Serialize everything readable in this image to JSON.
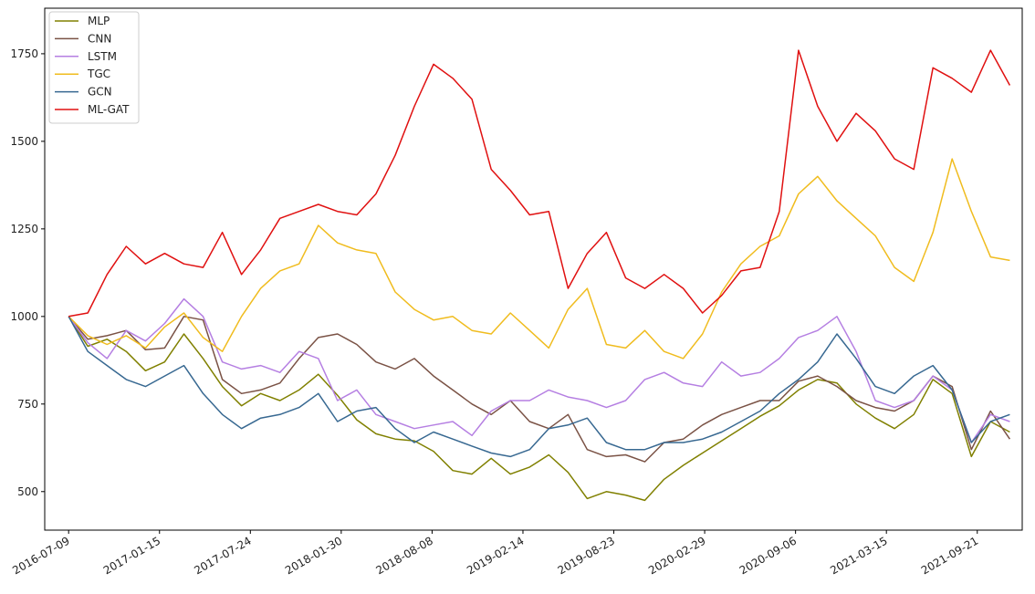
{
  "chart_data": {
    "type": "line",
    "title": "",
    "xlabel": "",
    "ylabel": "",
    "x_ticks": [
      "2016-07-09",
      "2017-01-15",
      "2017-07-24",
      "2018-01-30",
      "2018-08-08",
      "2019-02-14",
      "2019-08-23",
      "2020-02-29",
      "2020-09-06",
      "2021-03-15",
      "2021-09-21"
    ],
    "y_ticks": [
      500,
      750,
      1000,
      1250,
      1500,
      1750
    ],
    "ylim": [
      390,
      1880
    ],
    "xlim": [
      "2016-05-20",
      "2021-12-24"
    ],
    "x_range": [
      "2016-07-09",
      "2021-11-28"
    ],
    "grid": false,
    "legend_position": "top-left",
    "series": [
      {
        "name": "MLP",
        "color": "#808000",
        "values": [
          1000,
          915,
          935,
          900,
          845,
          870,
          950,
          880,
          800,
          745,
          780,
          760,
          790,
          835,
          775,
          705,
          665,
          650,
          645,
          615,
          560,
          550,
          595,
          550,
          570,
          605,
          555,
          480,
          500,
          490,
          475,
          535,
          575,
          610,
          645,
          680,
          715,
          745,
          790,
          820,
          810,
          750,
          710,
          680,
          720,
          820,
          780,
          600,
          700,
          670
        ]
      },
      {
        "name": "CNN",
        "color": "#7a5245",
        "values": [
          1000,
          935,
          945,
          960,
          905,
          910,
          1000,
          990,
          820,
          780,
          790,
          810,
          880,
          940,
          950,
          920,
          870,
          850,
          880,
          830,
          790,
          750,
          720,
          760,
          700,
          680,
          720,
          620,
          600,
          605,
          585,
          640,
          650,
          690,
          720,
          740,
          760,
          760,
          815,
          830,
          800,
          760,
          740,
          730,
          760,
          830,
          800,
          620,
          730,
          650
        ]
      },
      {
        "name": "LSTM",
        "color": "#b57fe2",
        "values": [
          1000,
          925,
          880,
          960,
          930,
          980,
          1050,
          1000,
          870,
          850,
          860,
          840,
          900,
          880,
          760,
          790,
          720,
          700,
          680,
          690,
          700,
          660,
          730,
          760,
          760,
          790,
          770,
          760,
          740,
          760,
          820,
          840,
          810,
          800,
          870,
          830,
          840,
          880,
          940,
          960,
          1000,
          900,
          760,
          740,
          760,
          830,
          790,
          640,
          720,
          700
        ]
      },
      {
        "name": "TGC",
        "color": "#f0bc1e",
        "values": [
          1000,
          945,
          920,
          945,
          910,
          970,
          1010,
          940,
          900,
          1000,
          1080,
          1130,
          1150,
          1260,
          1210,
          1190,
          1180,
          1070,
          1020,
          990,
          1000,
          960,
          950,
          1010,
          960,
          910,
          1020,
          1080,
          920,
          910,
          960,
          900,
          880,
          950,
          1070,
          1150,
          1200,
          1230,
          1350,
          1400,
          1330,
          1280,
          1230,
          1140,
          1100,
          1240,
          1450,
          1300,
          1170,
          1160
        ]
      },
      {
        "name": "GCN",
        "color": "#376891",
        "values": [
          1000,
          900,
          860,
          820,
          800,
          830,
          860,
          780,
          720,
          680,
          710,
          720,
          740,
          780,
          700,
          730,
          740,
          680,
          640,
          670,
          650,
          630,
          610,
          600,
          620,
          680,
          690,
          710,
          640,
          620,
          620,
          640,
          640,
          650,
          670,
          700,
          730,
          780,
          820,
          870,
          950,
          880,
          800,
          780,
          830,
          860,
          790,
          640,
          700,
          720
        ]
      },
      {
        "name": "ML-GAT",
        "color": "#e01010",
        "values": [
          1000,
          1010,
          1120,
          1200,
          1150,
          1180,
          1150,
          1140,
          1240,
          1120,
          1190,
          1280,
          1300,
          1320,
          1300,
          1290,
          1350,
          1460,
          1600,
          1720,
          1680,
          1620,
          1420,
          1360,
          1290,
          1300,
          1080,
          1180,
          1240,
          1110,
          1080,
          1120,
          1080,
          1010,
          1060,
          1130,
          1140,
          1300,
          1760,
          1600,
          1500,
          1580,
          1530,
          1450,
          1420,
          1710,
          1680,
          1640,
          1760,
          1660
        ]
      }
    ]
  }
}
